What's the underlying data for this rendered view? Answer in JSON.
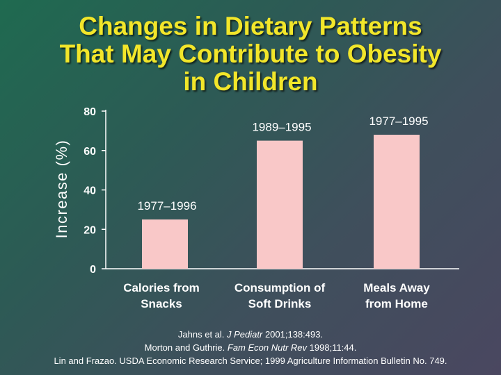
{
  "title": {
    "line1": "Changes in Dietary Patterns",
    "line2": "That May Contribute to Obesity",
    "line3": "in Children"
  },
  "colors": {
    "title": "#f2e62a",
    "bar": "#f9c8c8",
    "text": "#ffffff"
  },
  "chart_data": {
    "type": "bar",
    "title": "Changes in Dietary Patterns That May Contribute to Obesity in Children",
    "xlabel": "",
    "ylabel": "Increase (%)",
    "ylim": [
      0,
      80
    ],
    "yticks": [
      0,
      20,
      40,
      60,
      80
    ],
    "categories": [
      [
        "Calories from",
        "Snacks"
      ],
      [
        "Consumption of",
        "Soft Drinks"
      ],
      [
        "Meals Away",
        "from Home"
      ]
    ],
    "values": [
      25,
      65,
      68
    ],
    "annotations": [
      "1977–1996",
      "1989–1995",
      "1977–1995"
    ],
    "grid": false
  },
  "references": {
    "ref1_authors": "Jahns et al. ",
    "ref1_journal": "J Pediatr",
    "ref1_rest": " 2001;138:493.",
    "ref2_authors": "Morton and Guthrie. ",
    "ref2_journal": "Fam Econ Nutr Rev",
    "ref2_rest": " 1998;11:44.",
    "ref3": "Lin and Frazao. USDA Economic Research Service; 1999 Agriculture Information Bulletin No. 749."
  }
}
